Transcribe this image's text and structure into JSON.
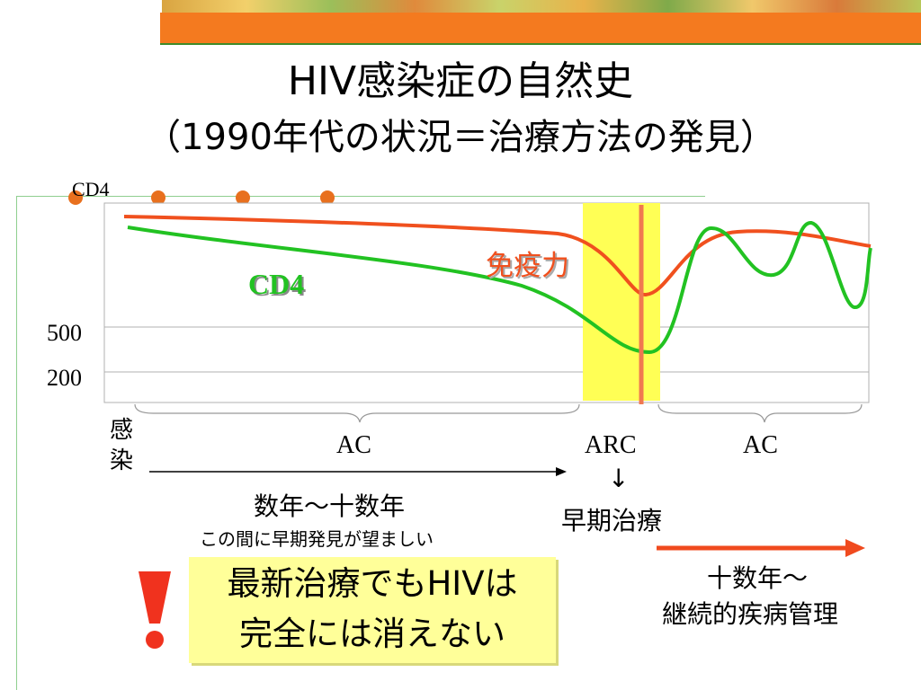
{
  "title_line1": "HIV感染症の自然史",
  "title_line2": "（1990年代の状況＝治療方法の発見）",
  "chart": {
    "y_axis_label": "CD4",
    "y_ticks": [
      "500",
      "200"
    ],
    "series_labels": {
      "cd4": "CD4",
      "immunity": "免疫力"
    },
    "colors": {
      "cd4": "#22c222",
      "immunity": "#f0501e",
      "arc_band": "#ffff55",
      "arc_line": "#f07850"
    }
  },
  "infection_label": [
    "感",
    "染"
  ],
  "phases": {
    "ac1": "AC",
    "arc": "ARC",
    "ac2": "AC"
  },
  "down_arrow": "↓",
  "early_treatment": "早期治療",
  "duration": {
    "years": "数年〜十数年",
    "note": "この間に早期発見が望ましい"
  },
  "long_term": {
    "line1": "十数年〜",
    "line2": "継続的疾病管理"
  },
  "callout": {
    "line1": "最新治療でもHIVは",
    "line2": "完全には消えない"
  },
  "decor_colors": {
    "dot": "#e8701e",
    "banner": "#f47a1f",
    "arrow": "#f04a1e"
  }
}
